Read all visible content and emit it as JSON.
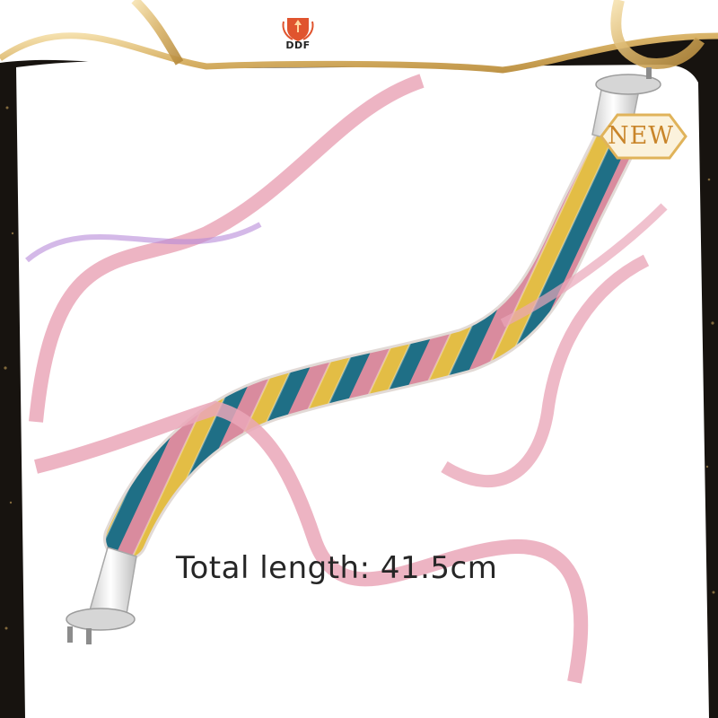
{
  "brand": {
    "name": "DDF",
    "logo_icon": "shield-crest-icon"
  },
  "badge": {
    "label": "NEW"
  },
  "product": {
    "caption": "Total length: 41.5cm",
    "rope_colors": [
      "#d98b9e",
      "#e3bd45",
      "#1f6f86"
    ]
  },
  "decor": {
    "ribbon_color": "#eaa7b9",
    "gold_color": "#d8b267"
  }
}
